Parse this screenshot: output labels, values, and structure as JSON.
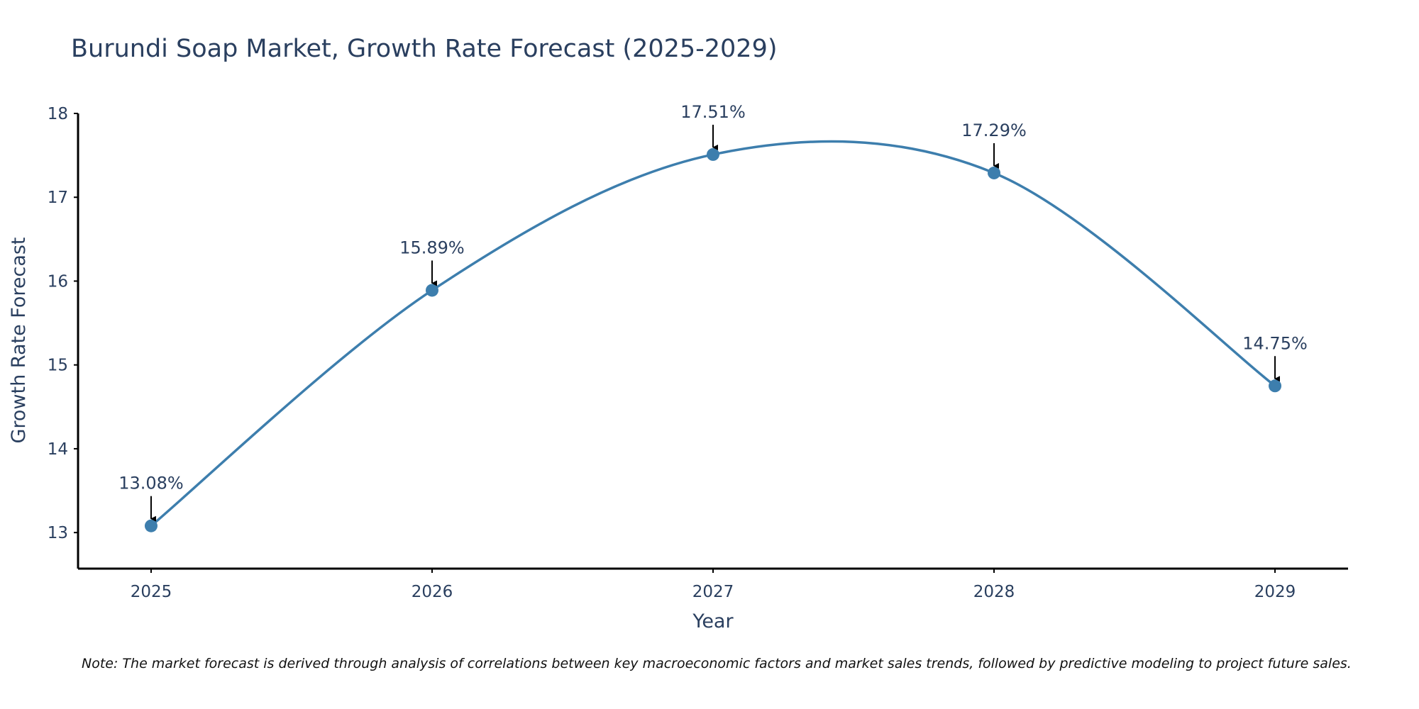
{
  "colors": {
    "series": "#3d7ead",
    "axis": "#000000",
    "text": "#2a3f5f",
    "arrow": "#000000"
  },
  "chart_data": {
    "type": "line",
    "title": "Burundi Soap Market, Growth Rate Forecast (2025-2029)",
    "xlabel": "Year",
    "ylabel": "Growth Rate Forecast",
    "categories": [
      "2025",
      "2026",
      "2027",
      "2028",
      "2029"
    ],
    "values": [
      13.08,
      15.89,
      17.51,
      17.29,
      14.75
    ],
    "data_labels": [
      "13.08%",
      "15.89%",
      "17.51%",
      "17.29%",
      "14.75%"
    ],
    "yticks": [
      13,
      14,
      15,
      16,
      17,
      18
    ],
    "ylim": [
      12.57,
      18
    ],
    "xlim": [
      -0.26,
      4.26
    ],
    "line_shape": "spline",
    "grid": false,
    "legend": "none",
    "note": "Note: The market forecast is derived through analysis of correlations between key macroeconomic factors and market sales trends, followed by predictive modeling to project future sales."
  }
}
